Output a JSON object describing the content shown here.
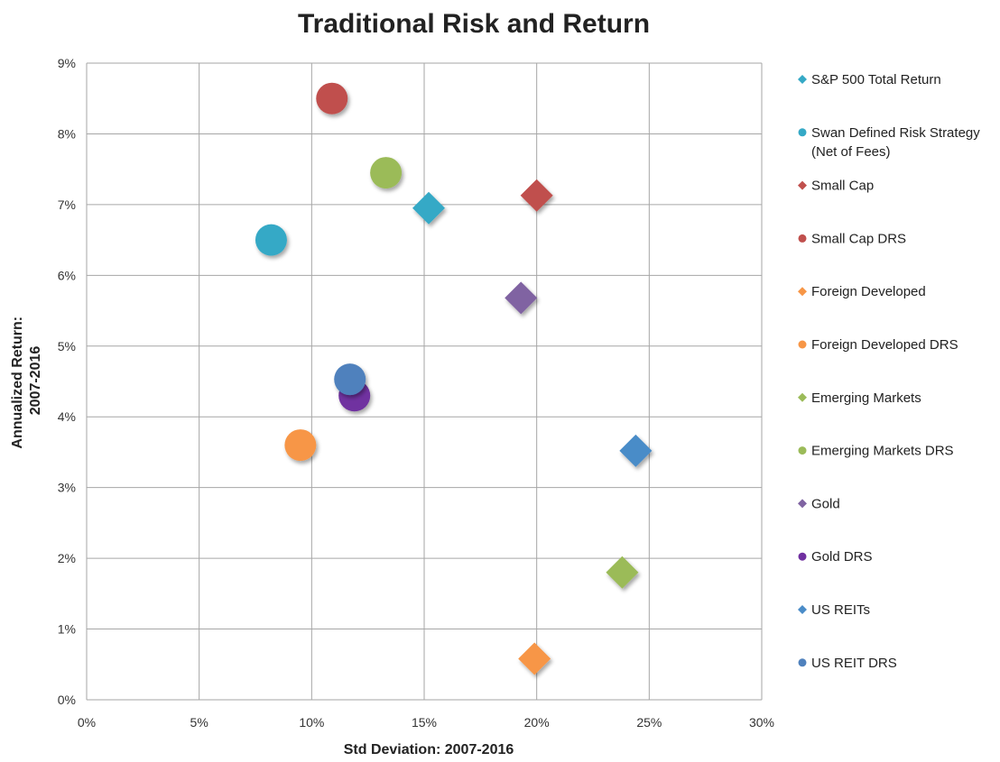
{
  "chart_data": {
    "type": "scatter",
    "title": "Traditional Risk and Return",
    "xlabel": "Std Deviation: 2007-2016",
    "ylabel_lines": [
      "Annualized Return:",
      "2007-2016"
    ],
    "xlim": [
      0,
      30
    ],
    "ylim": [
      0,
      9
    ],
    "x_ticks": [
      0,
      5,
      10,
      15,
      20,
      25,
      30
    ],
    "y_ticks": [
      0,
      1,
      2,
      3,
      4,
      5,
      6,
      7,
      8,
      9
    ],
    "x_tick_labels": [
      "0%",
      "5%",
      "10%",
      "15%",
      "20%",
      "25%",
      "30%"
    ],
    "y_tick_labels": [
      "0%",
      "1%",
      "2%",
      "3%",
      "4%",
      "5%",
      "6%",
      "7%",
      "8%",
      "9%"
    ],
    "grid": true,
    "legend_position": "right",
    "series": [
      {
        "name": "S&P 500 Total Return",
        "marker": "diamond",
        "color": "#35A9C6",
        "x": 15.2,
        "y": 6.95
      },
      {
        "name": "Swan Defined Risk Strategy\n(Net of Fees)",
        "marker": "circle",
        "color": "#35A9C6",
        "x": 8.2,
        "y": 6.5
      },
      {
        "name": "Small Cap",
        "marker": "diamond",
        "color": "#C0504D",
        "x": 20.0,
        "y": 7.13
      },
      {
        "name": "Small Cap DRS",
        "marker": "circle",
        "color": "#C0504D",
        "x": 10.9,
        "y": 8.5
      },
      {
        "name": "Foreign Developed",
        "marker": "diamond",
        "color": "#F79646",
        "x": 19.9,
        "y": 0.58
      },
      {
        "name": "Foreign Developed DRS",
        "marker": "circle",
        "color": "#F79646",
        "x": 9.5,
        "y": 3.6
      },
      {
        "name": "Emerging Markets",
        "marker": "diamond",
        "color": "#9BBB59",
        "x": 23.8,
        "y": 1.8
      },
      {
        "name": "Emerging Markets DRS",
        "marker": "circle",
        "color": "#9BBB59",
        "x": 13.3,
        "y": 7.45
      },
      {
        "name": "Gold",
        "marker": "diamond",
        "color": "#8064A2",
        "x": 19.3,
        "y": 5.68
      },
      {
        "name": "Gold DRS",
        "marker": "circle",
        "color": "#7030A0",
        "x": 11.9,
        "y": 4.3
      },
      {
        "name": "US REITs",
        "marker": "diamond",
        "color": "#4A8CC8",
        "x": 24.4,
        "y": 3.52
      },
      {
        "name": "US REIT DRS",
        "marker": "circle",
        "color": "#4F81BD",
        "x": 11.7,
        "y": 4.53
      }
    ]
  }
}
